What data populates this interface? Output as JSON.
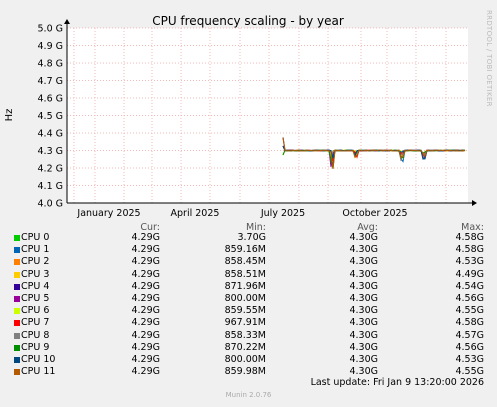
{
  "chart_data": {
    "type": "line",
    "title": "CPU frequency scaling - by year",
    "ylabel": "Hz",
    "ylim": [
      4.0,
      5.0
    ],
    "y_ticks": [
      "4.0 G",
      "4.1 G",
      "4.2 G",
      "4.3 G",
      "4.4 G",
      "4.5 G",
      "4.6 G",
      "4.7 G",
      "4.8 G",
      "4.9 G",
      "5.0 G"
    ],
    "x_ticks": [
      "January 2025",
      "April 2025",
      "July 2025",
      "October 2025"
    ],
    "grid": true,
    "series_start": "July 2025",
    "series_level": 4.3,
    "columns": {
      "cur": "Cur:",
      "min": "Min:",
      "avg": "Avg:",
      "max": "Max:"
    },
    "series": [
      {
        "name": "CPU 0",
        "color": "#00cc00",
        "cur": "4.29G",
        "min": "3.70G",
        "avg": "4.30G",
        "max": "4.58G"
      },
      {
        "name": "CPU 1",
        "color": "#0066b3",
        "cur": "4.29G",
        "min": "859.16M",
        "avg": "4.30G",
        "max": "4.58G"
      },
      {
        "name": "CPU 2",
        "color": "#ff8000",
        "cur": "4.29G",
        "min": "858.45M",
        "avg": "4.30G",
        "max": "4.53G"
      },
      {
        "name": "CPU 3",
        "color": "#ffcc00",
        "cur": "4.29G",
        "min": "858.51M",
        "avg": "4.30G",
        "max": "4.49G"
      },
      {
        "name": "CPU 4",
        "color": "#330099",
        "cur": "4.29G",
        "min": "871.96M",
        "avg": "4.30G",
        "max": "4.54G"
      },
      {
        "name": "CPU 5",
        "color": "#990099",
        "cur": "4.29G",
        "min": "800.00M",
        "avg": "4.30G",
        "max": "4.56G"
      },
      {
        "name": "CPU 6",
        "color": "#ccff00",
        "cur": "4.29G",
        "min": "859.55M",
        "avg": "4.30G",
        "max": "4.55G"
      },
      {
        "name": "CPU 7",
        "color": "#ff0000",
        "cur": "4.29G",
        "min": "967.91M",
        "avg": "4.30G",
        "max": "4.58G"
      },
      {
        "name": "CPU 8",
        "color": "#808080",
        "cur": "4.29G",
        "min": "858.33M",
        "avg": "4.30G",
        "max": "4.57G"
      },
      {
        "name": "CPU 9",
        "color": "#008f00",
        "cur": "4.29G",
        "min": "870.22M",
        "avg": "4.30G",
        "max": "4.56G"
      },
      {
        "name": "CPU 10",
        "color": "#00487d",
        "cur": "4.29G",
        "min": "800.00M",
        "avg": "4.30G",
        "max": "4.53G"
      },
      {
        "name": "CPU 11",
        "color": "#b35a00",
        "cur": "4.29G",
        "min": "859.98M",
        "avg": "4.30G",
        "max": "4.55G"
      }
    ]
  },
  "last_update": "Last update: Fri Jan  9 13:20:00 2026",
  "footer": "Munin 2.0.76",
  "watermark": "RRDTOOL / TOBI OETIKER"
}
